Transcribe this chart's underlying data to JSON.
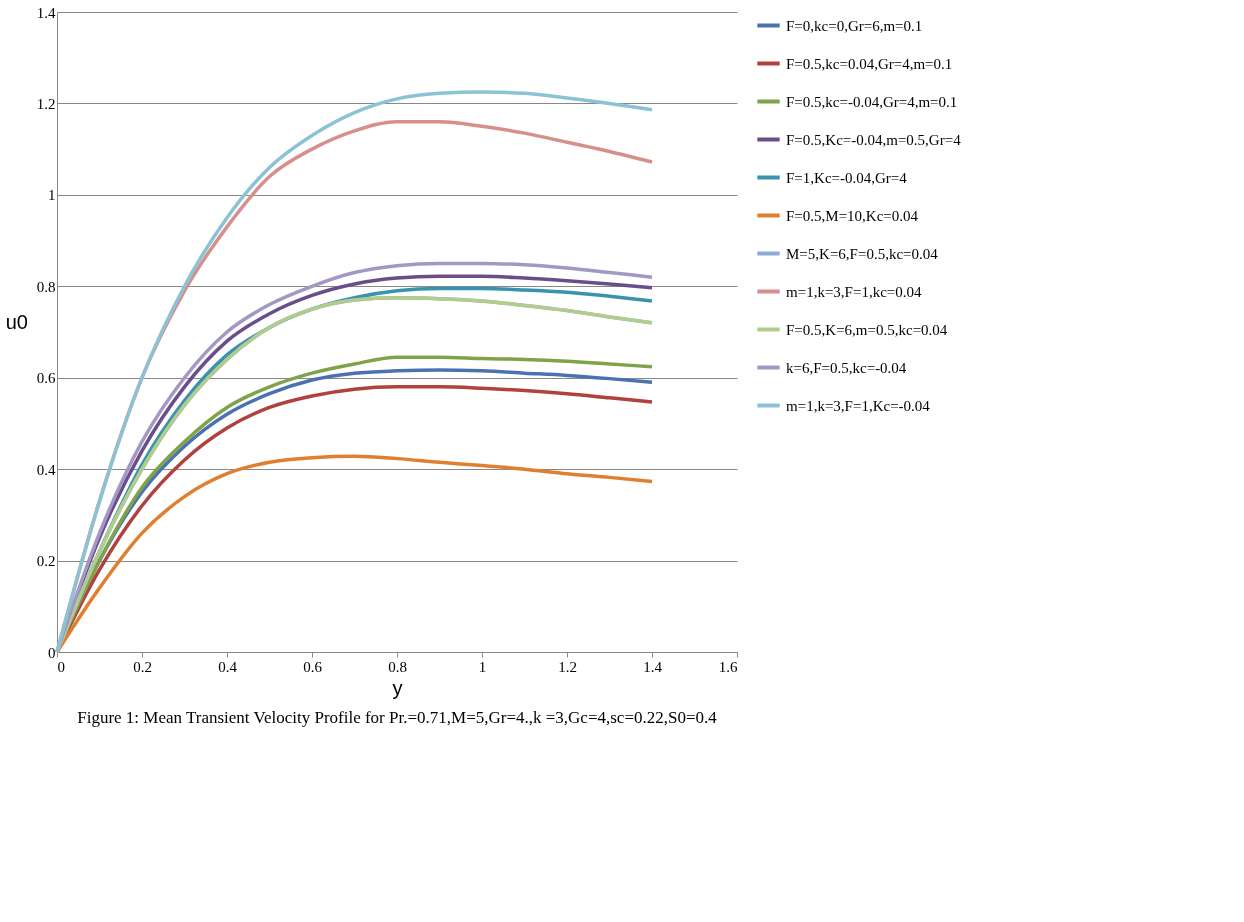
{
  "chart_data": {
    "type": "line",
    "xlabel": "y",
    "ylabel": "u0",
    "x": [
      0,
      0.1,
      0.2,
      0.3,
      0.4,
      0.5,
      0.6,
      0.7,
      0.8,
      0.9,
      1.0,
      1.1,
      1.2,
      1.3,
      1.4
    ],
    "xlim": [
      0,
      1.6
    ],
    "xticks": [
      0,
      0.2,
      0.4,
      0.6,
      0.8,
      1,
      1.2,
      1.4,
      1.6
    ],
    "ylim": [
      0,
      1.4
    ],
    "yticks": [
      0,
      0.2,
      0.4,
      0.6,
      0.8,
      1,
      1.2,
      1.4
    ],
    "grid": "y",
    "legend": "right",
    "line_style": "solid",
    "annotations": [
      "Figure 1: Mean Transient Velocity Profile for Pr.=0.71,M=5,Gr=4.,k =3,Gc=4,sc=0.22,S0=0.4"
    ],
    "series": [
      {
        "name": "F=0,kc=0,Gr=6,m=0.1",
        "color": "#4a72b0",
        "values": [
          0,
          0.2,
          0.35,
          0.45,
          0.52,
          0.565,
          0.595,
          0.61,
          0.615,
          0.617,
          0.615,
          0.61,
          0.605,
          0.598,
          0.59
        ]
      },
      {
        "name": "F=0.5,kc=0.04,Gr=4,m=0.1",
        "color": "#b0413e",
        "values": [
          0,
          0.18,
          0.32,
          0.42,
          0.49,
          0.535,
          0.56,
          0.575,
          0.58,
          0.58,
          0.577,
          0.572,
          0.565,
          0.556,
          0.547
        ]
      },
      {
        "name": "F=0.5,kc=-0.04,Gr=4,m=0.1",
        "color": "#7ea34a",
        "values": [
          0,
          0.2,
          0.36,
          0.46,
          0.535,
          0.58,
          0.61,
          0.63,
          0.645,
          0.645,
          0.642,
          0.64,
          0.636,
          0.63,
          0.624
        ]
      },
      {
        "name": "F=0.5,Kc=-0.04,m=0.5,Gr=4",
        "color": "#6a4e8c",
        "values": [
          0,
          0.25,
          0.44,
          0.58,
          0.68,
          0.74,
          0.78,
          0.805,
          0.818,
          0.822,
          0.822,
          0.818,
          0.812,
          0.805,
          0.797
        ]
      },
      {
        "name": "F=1,Kc=-0.04,Gr=4",
        "color": "#3a93ad",
        "values": [
          0,
          0.22,
          0.41,
          0.55,
          0.65,
          0.71,
          0.75,
          0.775,
          0.79,
          0.795,
          0.795,
          0.792,
          0.787,
          0.778,
          0.768
        ]
      },
      {
        "name": "F=0.5,M=10,Kc=0.04",
        "color": "#e07f30",
        "values": [
          0,
          0.14,
          0.26,
          0.34,
          0.39,
          0.415,
          0.425,
          0.428,
          0.423,
          0.415,
          0.408,
          0.4,
          0.39,
          0.382,
          0.373
        ]
      },
      {
        "name": "M=5,K=6,F=0.5,kc=0.04",
        "color": "#8faad6",
        "values": [
          0,
          0.22,
          0.4,
          0.54,
          0.64,
          0.71,
          0.75,
          0.77,
          0.775,
          0.773,
          0.768,
          0.758,
          0.747,
          0.733,
          0.72
        ]
      },
      {
        "name": "m=1,k=3,F=1,kc=0.04",
        "color": "#d68f8b",
        "values": [
          0,
          0.33,
          0.6,
          0.79,
          0.93,
          1.04,
          1.1,
          1.14,
          1.16,
          1.16,
          1.15,
          1.135,
          1.115,
          1.095,
          1.072
        ]
      },
      {
        "name": "F=0.5,K=6,m=0.5,kc=0.04",
        "color": "#b1cc8b",
        "values": [
          0,
          0.22,
          0.4,
          0.54,
          0.64,
          0.71,
          0.75,
          0.77,
          0.775,
          0.773,
          0.768,
          0.758,
          0.747,
          0.733,
          0.72
        ]
      },
      {
        "name": "k=6,F=0.5,kc=-0.04",
        "color": "#a597c4",
        "values": [
          0,
          0.26,
          0.46,
          0.6,
          0.7,
          0.76,
          0.8,
          0.83,
          0.845,
          0.85,
          0.85,
          0.847,
          0.84,
          0.83,
          0.82
        ]
      },
      {
        "name": "m=1,k=3,F=1,Kc=-0.04",
        "color": "#8cc2d6",
        "values": [
          0,
          0.33,
          0.6,
          0.8,
          0.95,
          1.06,
          1.13,
          1.18,
          1.21,
          1.222,
          1.225,
          1.222,
          1.212,
          1.2,
          1.186
        ]
      }
    ]
  }
}
